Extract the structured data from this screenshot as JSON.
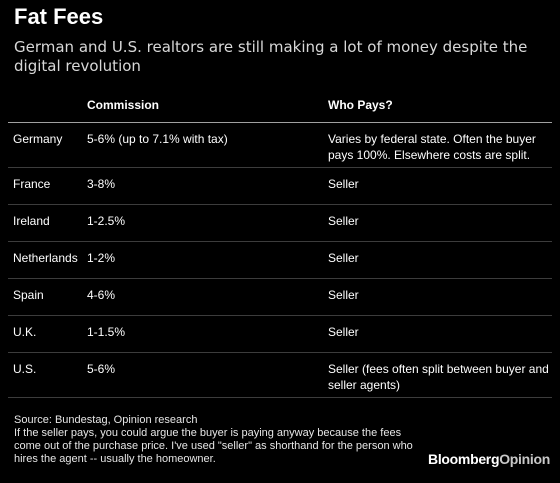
{
  "chart_data": {
    "type": "table",
    "title": "Fat Fees",
    "subtitle": "German and U.S. realtors are still making a lot of money despite the digital revolution",
    "columns": [
      "",
      "Commission",
      "Who Pays?"
    ],
    "rows": [
      {
        "country": "Germany",
        "commission": "5-6% (up to 7.1% with tax)",
        "who_pays": "Varies by federal state. Often the buyer pays 100%. Elsewhere costs are split."
      },
      {
        "country": "France",
        "commission": "3-8%",
        "who_pays": "Seller"
      },
      {
        "country": "Ireland",
        "commission": "1-2.5%",
        "who_pays": "Seller"
      },
      {
        "country": "Netherlands",
        "commission": "1-2%",
        "who_pays": "Seller"
      },
      {
        "country": "Spain",
        "commission": "4-6%",
        "who_pays": "Seller"
      },
      {
        "country": "U.K.",
        "commission": "1-1.5%",
        "who_pays": "Seller"
      },
      {
        "country": "U.S.",
        "commission": "5-6%",
        "who_pays": "Seller (fees often split between buyer and seller agents)"
      }
    ],
    "source": "Source: Bundestag, Opinion research",
    "note": "If the seller pays, you could argue the buyer is paying anyway because the fees come out of the purchase price. I've used \"seller\" as shorthand for the person who hires the agent -- usually the homeowner."
  },
  "branding": {
    "name": "Bloomberg",
    "suffix": "Opinion"
  }
}
